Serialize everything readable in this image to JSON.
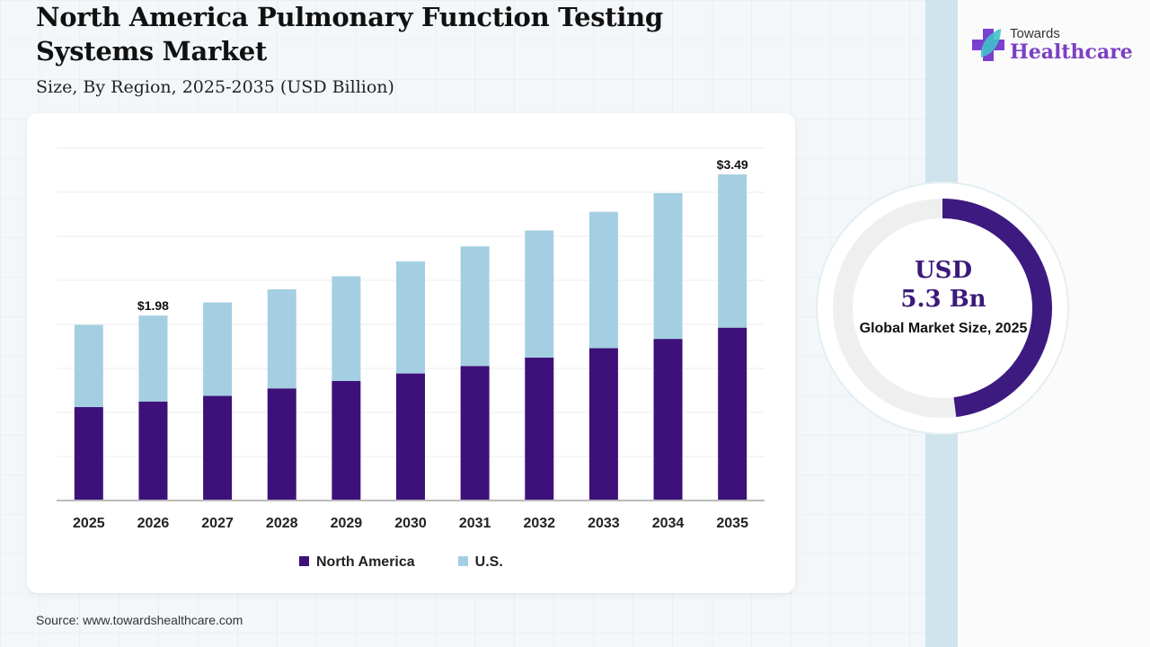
{
  "title": "North America Pulmonary Function Testing Systems Market",
  "subtitle": "Size, By Region, 2025-2035 (USD Billion)",
  "logo": {
    "line1": "Towards",
    "line2": "Healthcare"
  },
  "summary": {
    "value_line1": "USD",
    "value_line2": "5.3 Bn",
    "label": "Global Market Size, 2025",
    "fill_fraction": 0.48
  },
  "source": "Source: www.towardshealthcare.com",
  "colors": {
    "north_america": "#3d1179",
    "us": "#a4cfe2",
    "donut": "#3d1a80"
  },
  "chart_data": {
    "type": "bar",
    "stacked": true,
    "categories": [
      "2025",
      "2026",
      "2027",
      "2028",
      "2029",
      "2030",
      "2031",
      "2032",
      "2033",
      "2034",
      "2035"
    ],
    "series": [
      {
        "name": "North America",
        "values": [
          1.0,
          1.06,
          1.12,
          1.2,
          1.28,
          1.36,
          1.44,
          1.53,
          1.63,
          1.73,
          1.85
        ]
      },
      {
        "name": "U.S.",
        "values": [
          0.88,
          0.92,
          1.0,
          1.06,
          1.12,
          1.2,
          1.28,
          1.36,
          1.46,
          1.56,
          1.64
        ]
      }
    ],
    "annotations": [
      {
        "category": "2026",
        "text": "$1.98"
      },
      {
        "category": "2035",
        "text": "$3.49"
      }
    ],
    "ylim": [
      0,
      3.77
    ],
    "grid": true,
    "legend": "bottom",
    "xlabel": "",
    "ylabel": ""
  }
}
